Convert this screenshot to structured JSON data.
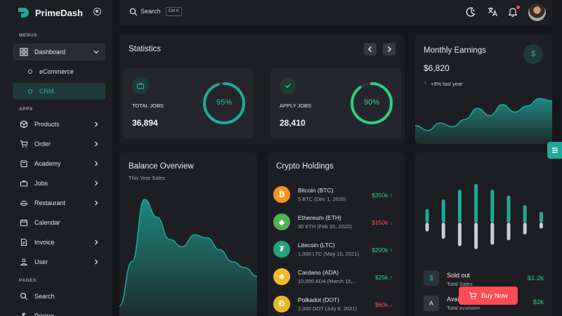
{
  "brand": {
    "name": "PrimeDash"
  },
  "sidebar": {
    "sections": {
      "menus": "MENUS",
      "apps": "APPS",
      "pages": "PAGES"
    },
    "dashboard": {
      "label": "Dashboard",
      "icon": "dashboard-icon"
    },
    "sub_items": [
      {
        "label": "eCommerce"
      },
      {
        "label": "CRM"
      }
    ],
    "apps": [
      {
        "label": "Products",
        "icon": "box-icon"
      },
      {
        "label": "Order",
        "icon": "cart-icon"
      },
      {
        "label": "Academy",
        "icon": "book-icon"
      },
      {
        "label": "Jobs",
        "icon": "briefcase-icon"
      },
      {
        "label": "Restaurant",
        "icon": "restaurant-icon"
      },
      {
        "label": "Calendar",
        "icon": "calendar-icon"
      },
      {
        "label": "Invoice",
        "icon": "invoice-icon"
      },
      {
        "label": "User",
        "icon": "user-icon"
      }
    ],
    "pages": [
      {
        "label": "Search",
        "icon": "search-icon"
      },
      {
        "label": "Pricing",
        "icon": "dollar-icon"
      }
    ]
  },
  "topbar": {
    "search_label": "Search",
    "shortcut": "Ctrl K"
  },
  "statistics": {
    "title": "Statistics",
    "total_jobs": {
      "label": "TOTAL JOBS",
      "value": "36,894",
      "percent_text": "95%",
      "percent": 95
    },
    "apply_jobs": {
      "label": "APPLY JOBS",
      "value": "28,410",
      "percent_text": "90%",
      "percent": 90
    }
  },
  "earnings": {
    "title": "Monthly Earnings",
    "amount": "$6,820",
    "change": "+9% last year",
    "trend": [
      30,
      22,
      34,
      28,
      40,
      58,
      46,
      64,
      52,
      62,
      74,
      70
    ]
  },
  "balance": {
    "title": "Balance Overview",
    "subtitle": "This Year Sales",
    "trend": [
      10,
      40,
      82,
      70,
      55,
      50,
      58,
      56,
      48,
      40,
      36,
      30
    ]
  },
  "crypto": {
    "title": "Crypto Holdings",
    "items": [
      {
        "name": "Bitcoin (BTC)",
        "sub": "5 BTC (Dec 1, 2020)",
        "value": "$350k",
        "dir": "up",
        "color": "#f7931a",
        "glyph": "₿"
      },
      {
        "name": "Ethereum (ETH)",
        "sub": "30 ETH (Feb 20, 2022)",
        "value": "$150k",
        "dir": "down",
        "color": "#4fb15a",
        "glyph": "◆"
      },
      {
        "name": "Litecoin (LTC)",
        "sub": "1,000 LTC (May 10, 2021)",
        "value": "$200k",
        "dir": "up",
        "color": "#27a17a",
        "glyph": "₮"
      },
      {
        "name": "Cardano (ADA)",
        "sub": "10,000 ADA (March 15,...",
        "value": "$25k",
        "dir": "up",
        "color": "#f3ba2f",
        "glyph": "❖"
      },
      {
        "name": "Polkadot (DOT)",
        "sub": "2,000 DOT (July 8, 2021)",
        "value": "$60k",
        "dir": "down",
        "color": "#e8b92a",
        "glyph": "Đ"
      }
    ]
  },
  "sales": {
    "bars": [
      {
        "up": 0.35,
        "down": 0.3
      },
      {
        "up": 0.6,
        "down": 0.55
      },
      {
        "up": 0.85,
        "down": 0.8
      },
      {
        "up": 1.0,
        "down": 0.9
      },
      {
        "up": 0.85,
        "down": 0.75
      },
      {
        "up": 0.7,
        "down": 0.6
      },
      {
        "up": 0.45,
        "down": 0.4
      },
      {
        "up": 0.28,
        "down": 0.2
      }
    ],
    "rows": [
      {
        "label": "Sold out",
        "sub": "Total Sales",
        "value": "$1.2k"
      },
      {
        "label": "Avai...",
        "sub": "Total available",
        "value": "$2k"
      }
    ]
  },
  "buy_button": {
    "label": "Buy Now"
  },
  "colors": {
    "accent": "#1fa99c",
    "green": "#2fce83",
    "red": "#ff4c51"
  }
}
